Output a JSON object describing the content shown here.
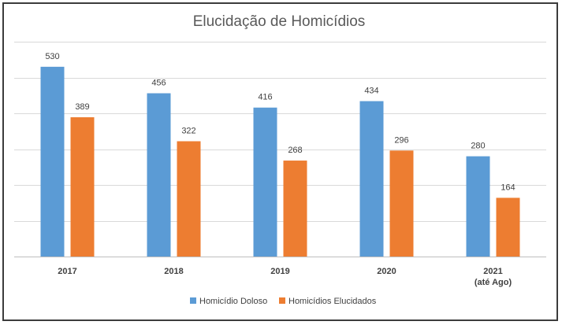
{
  "chart_data": {
    "type": "bar",
    "title": "Elucidação de Homicídios",
    "categories": [
      [
        "2017"
      ],
      [
        "2018"
      ],
      [
        "2019"
      ],
      [
        "2020"
      ],
      [
        "2021",
        "(até Ago)"
      ]
    ],
    "series": [
      {
        "name": "Homicídio Doloso",
        "color": "#5b9bd5",
        "values": [
          530,
          456,
          416,
          434,
          280
        ]
      },
      {
        "name": "Homicídios Elucidados",
        "color": "#ed7d31",
        "values": [
          389,
          322,
          268,
          296,
          164
        ]
      }
    ],
    "ylim": [
      0,
      600
    ],
    "ytick_step": 100,
    "show_y_tick_labels": false,
    "grid": true,
    "legend_position": "bottom"
  }
}
